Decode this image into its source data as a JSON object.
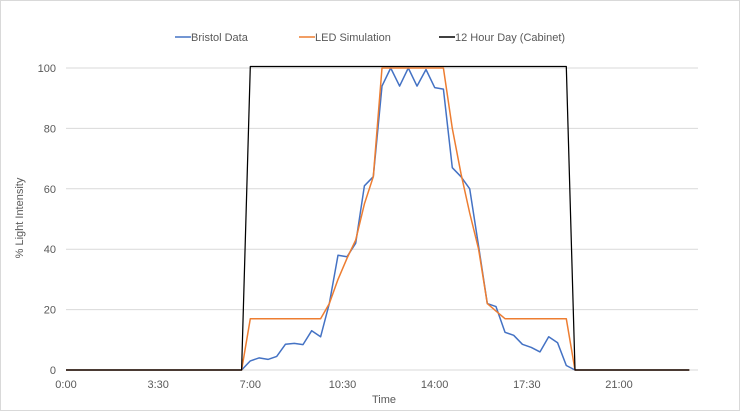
{
  "chart_data": {
    "type": "line",
    "title": "",
    "xlabel": "Time",
    "ylabel": "% Light Intensity",
    "xlim": [
      0,
      24
    ],
    "ylim": [
      0,
      100
    ],
    "x_ticks": [
      {
        "value": 0,
        "label": "0:00"
      },
      {
        "value": 3.5,
        "label": "3:30"
      },
      {
        "value": 7,
        "label": "7:00"
      },
      {
        "value": 10.5,
        "label": "10:30"
      },
      {
        "value": 14,
        "label": "14:00"
      },
      {
        "value": 17.5,
        "label": "17:30"
      },
      {
        "value": 21,
        "label": "21:00"
      }
    ],
    "y_ticks": [
      0,
      20,
      40,
      60,
      80,
      100
    ],
    "grid": {
      "horizontal": true,
      "vertical": false
    },
    "legend_position": "top",
    "series": [
      {
        "name": "Bristol Data",
        "color": "#4472C4",
        "points": [
          [
            0,
            0
          ],
          [
            6.67,
            0
          ],
          [
            7,
            3
          ],
          [
            7.33,
            4
          ],
          [
            7.67,
            3.5
          ],
          [
            8,
            4.5
          ],
          [
            8.33,
            8.5
          ],
          [
            8.67,
            8.8
          ],
          [
            9,
            8.4
          ],
          [
            9.33,
            13
          ],
          [
            9.67,
            11
          ],
          [
            10,
            22
          ],
          [
            10.33,
            38
          ],
          [
            10.67,
            37.5
          ],
          [
            11,
            42
          ],
          [
            11.33,
            61
          ],
          [
            11.67,
            64
          ],
          [
            12,
            94
          ],
          [
            12.33,
            100
          ],
          [
            12.67,
            94
          ],
          [
            13,
            100
          ],
          [
            13.33,
            94
          ],
          [
            13.67,
            99.5
          ],
          [
            14,
            93.5
          ],
          [
            14.33,
            93
          ],
          [
            14.67,
            67
          ],
          [
            15,
            64
          ],
          [
            15.33,
            60
          ],
          [
            15.67,
            41
          ],
          [
            16,
            22
          ],
          [
            16.33,
            21
          ],
          [
            16.67,
            12.5
          ],
          [
            17,
            11.5
          ],
          [
            17.33,
            8.5
          ],
          [
            17.67,
            7.5
          ],
          [
            18,
            6
          ],
          [
            18.33,
            11
          ],
          [
            18.67,
            9
          ],
          [
            19,
            1.5
          ],
          [
            19.33,
            0
          ],
          [
            23.67,
            0
          ]
        ]
      },
      {
        "name": "LED Simulation",
        "color": "#ED7D31",
        "points": [
          [
            0,
            0
          ],
          [
            6.67,
            0
          ],
          [
            7,
            17
          ],
          [
            9.67,
            17
          ],
          [
            10,
            22
          ],
          [
            10.33,
            30
          ],
          [
            10.67,
            37
          ],
          [
            11,
            43
          ],
          [
            11.33,
            55
          ],
          [
            11.67,
            64
          ],
          [
            12,
            100
          ],
          [
            14.33,
            100
          ],
          [
            14.67,
            80
          ],
          [
            15,
            65
          ],
          [
            15.33,
            52
          ],
          [
            15.67,
            40
          ],
          [
            16,
            22
          ],
          [
            16.33,
            19.5
          ],
          [
            16.67,
            17
          ],
          [
            19,
            17
          ],
          [
            19.33,
            0
          ],
          [
            23.67,
            0
          ]
        ]
      },
      {
        "name": "12 Hour Day (Cabinet)",
        "color": "#000000",
        "points": [
          [
            0,
            0
          ],
          [
            6.67,
            0
          ],
          [
            7,
            100.5
          ],
          [
            19,
            100.5
          ],
          [
            19.33,
            0
          ],
          [
            23.67,
            0
          ]
        ]
      }
    ]
  }
}
